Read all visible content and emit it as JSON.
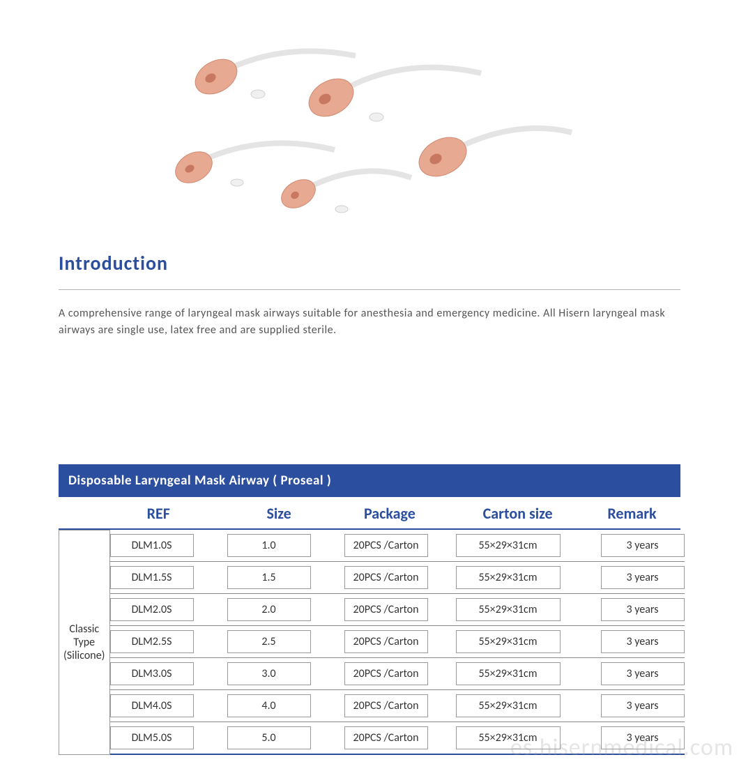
{
  "intro": {
    "title": "Introduction",
    "text": "A comprehensive range of laryngeal mask airways suitable for anesthesia and emergency medicine. All Hisern laryngeal mask airways are single use, latex free and are supplied sterile."
  },
  "table": {
    "title": "Disposable Laryngeal Mask Airway ( Proseal )",
    "headers": {
      "ref": "REF",
      "size": "Size",
      "package": "Package",
      "carton": "Carton size",
      "remark": "Remark"
    },
    "type_label_line1": "Classic Type",
    "type_label_line2": "(Silicone)",
    "rows": [
      {
        "ref": "DLM1.0S",
        "size": "1.0",
        "package": "20PCS /Carton",
        "carton": "55×29×31cm",
        "remark": "3 years"
      },
      {
        "ref": "DLM1.5S",
        "size": "1.5",
        "package": "20PCS /Carton",
        "carton": "55×29×31cm",
        "remark": "3 years"
      },
      {
        "ref": "DLM2.0S",
        "size": "2.0",
        "package": "20PCS /Carton",
        "carton": "55×29×31cm",
        "remark": "3 years"
      },
      {
        "ref": "DLM2.5S",
        "size": "2.5",
        "package": "20PCS /Carton",
        "carton": "55×29×31cm",
        "remark": "3 years"
      },
      {
        "ref": "DLM3.0S",
        "size": "3.0",
        "package": "20PCS /Carton",
        "carton": "55×29×31cm",
        "remark": "3 years"
      },
      {
        "ref": "DLM4.0S",
        "size": "4.0",
        "package": "20PCS /Carton",
        "carton": "55×29×31cm",
        "remark": "3 years"
      },
      {
        "ref": "DLM5.0S",
        "size": "5.0",
        "package": "20PCS /Carton",
        "carton": "55×29×31cm",
        "remark": "3 years"
      }
    ]
  },
  "colors": {
    "brand_blue": "#2c4e9e",
    "text_gray": "#555555",
    "border_gray": "#999999",
    "underline_gray": "#b0b0b0",
    "cuff_fill": "#e8a992",
    "background": "#ffffff"
  },
  "watermark": "es.hisernmedical.com"
}
